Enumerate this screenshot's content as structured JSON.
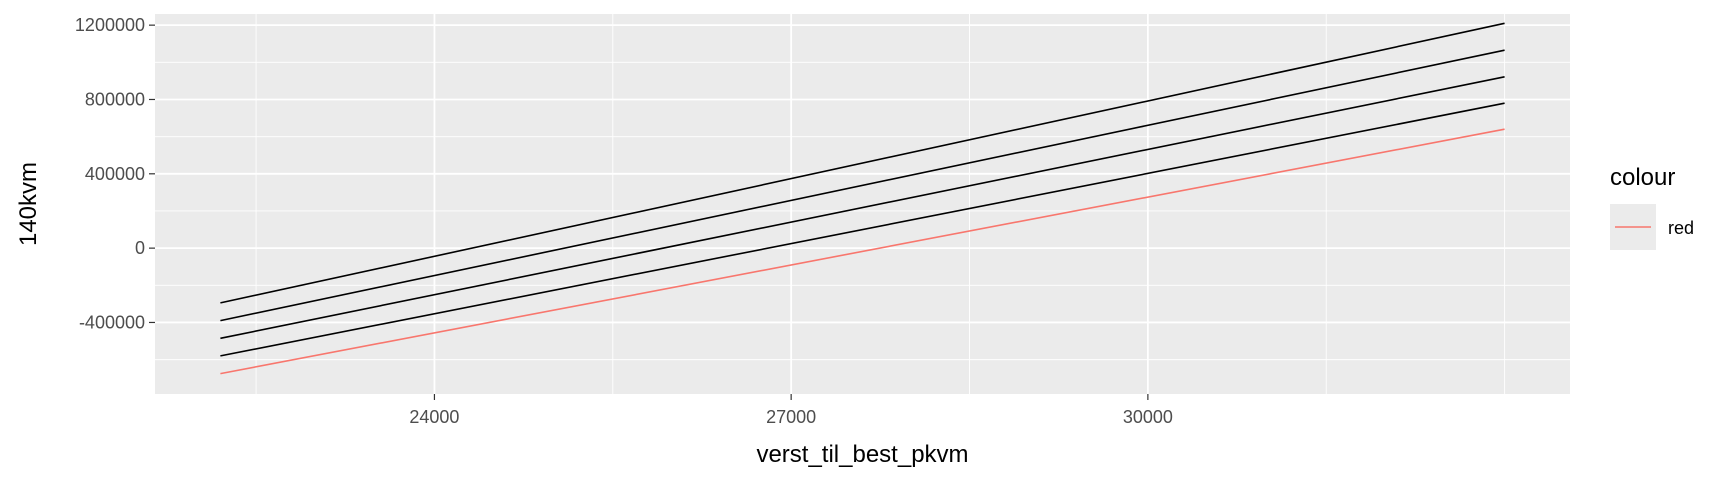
{
  "chart_data": {
    "type": "line",
    "title": "",
    "xlabel": "verst_til_best_pkvm",
    "ylabel": "140kvm",
    "xlim": [
      21650,
      33550
    ],
    "ylim": [
      -785000,
      1260000
    ],
    "x_ticks": [
      24000,
      27000,
      30000
    ],
    "x_tick_labels": [
      "24000",
      "27000",
      "30000"
    ],
    "x_minor_ticks": [
      22500,
      25500,
      28500,
      31500,
      33000
    ],
    "y_ticks": [
      -400000,
      0,
      400000,
      800000,
      1200000
    ],
    "y_tick_labels": [
      "-400000",
      "0",
      "400000",
      "800000",
      "1200000"
    ],
    "y_minor_ticks": [
      -600000,
      -200000,
      200000,
      600000,
      1000000
    ],
    "grid": true,
    "panel_background": "#ebebeb",
    "grid_color": "#ffffff",
    "legend": {
      "title": "colour",
      "placement": "right",
      "entries": [
        {
          "label": "red",
          "color": "#f8766d"
        }
      ]
    },
    "series": [
      {
        "x": [
          22200,
          33000
        ],
        "y": [
          -295000,
          1210000
        ],
        "color": "#000000"
      },
      {
        "x": [
          22200,
          33000
        ],
        "y": [
          -390000,
          1065000
        ],
        "color": "#000000"
      },
      {
        "x": [
          22200,
          33000
        ],
        "y": [
          -485000,
          922000
        ],
        "color": "#000000"
      },
      {
        "x": [
          22200,
          33000
        ],
        "y": [
          -580000,
          780000
        ],
        "color": "#000000"
      },
      {
        "name": "red",
        "x": [
          22200,
          33000
        ],
        "y": [
          -675000,
          640000
        ],
        "color": "#f8766d"
      }
    ]
  }
}
